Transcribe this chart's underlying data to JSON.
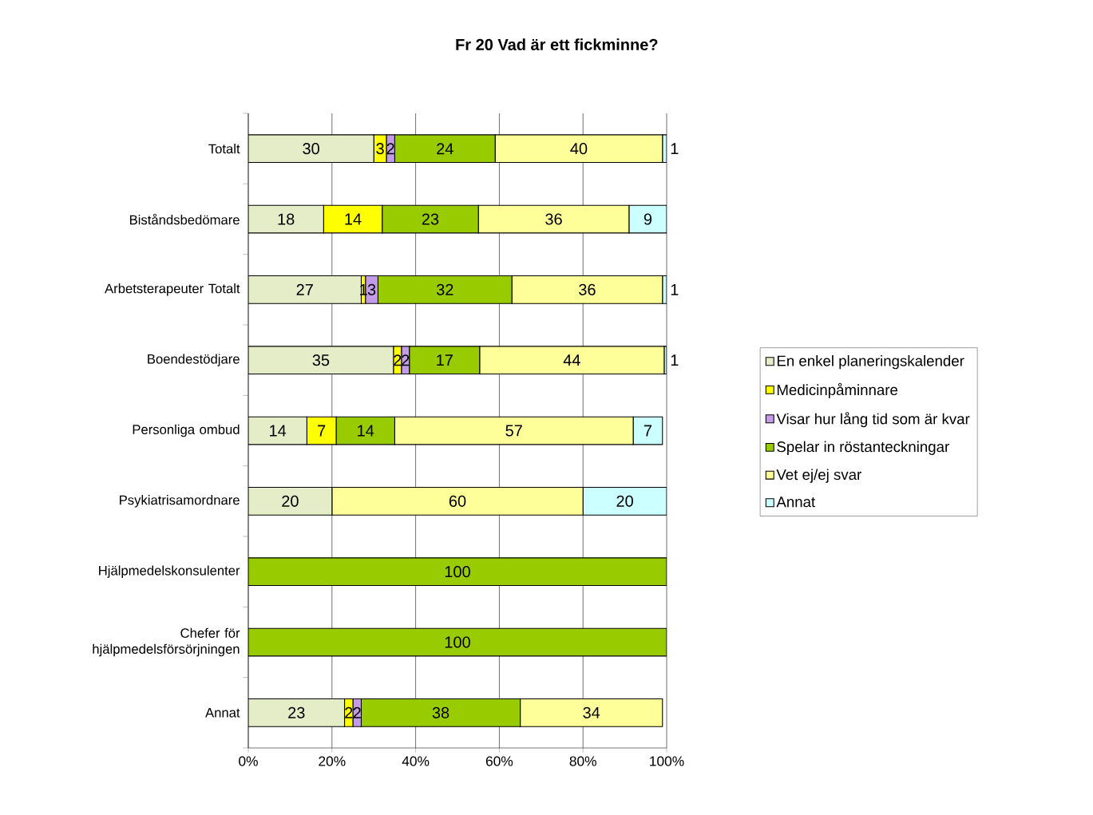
{
  "chart_data": {
    "type": "bar",
    "orientation": "horizontal",
    "stacked": true,
    "title": "Fr 20 Vad är ett fickminne?",
    "categories": [
      "Totalt",
      "Biståndsbedömare",
      "Arbetsterapeuter Totalt",
      "Boendestödjare",
      "Personliga ombud",
      "Psykiatrisamordnare",
      "Hjälpmedelskonsulenter",
      "Chefer för hjälpmedelsförsörjningen",
      "Annat"
    ],
    "series": [
      {
        "name": "En enkel planeringskalender",
        "color": "#e4ecc8",
        "values": [
          30,
          18,
          27,
          34.7,
          14,
          20,
          null,
          null,
          23
        ],
        "value_labels": [
          "30",
          "18",
          "27",
          "35",
          "14",
          "20",
          null,
          null,
          "23"
        ]
      },
      {
        "name": "Medicinpåminnare",
        "color": "#ffff00",
        "values": [
          3,
          14,
          1,
          1.9,
          7,
          null,
          null,
          null,
          2
        ],
        "value_labels": [
          "3",
          "14",
          "1",
          "2",
          "7",
          null,
          null,
          null,
          "2"
        ]
      },
      {
        "name": "Visar hur lång tid som är kvar",
        "color": "#c39be8",
        "values": [
          2,
          null,
          3,
          1.9,
          null,
          null,
          null,
          null,
          2
        ],
        "value_labels": [
          "2",
          null,
          "3",
          "2",
          null,
          null,
          null,
          null,
          "2"
        ]
      },
      {
        "name": "Spelar in röstanteckningar",
        "color": "#99cc00",
        "values": [
          24,
          23,
          32,
          16.8,
          14,
          null,
          100,
          100,
          38
        ],
        "value_labels": [
          "24",
          "23",
          "32",
          "17",
          "14",
          null,
          "100",
          "100",
          "38"
        ]
      },
      {
        "name": "Vet ej/ej svar",
        "color": "#ffff99",
        "values": [
          40,
          36,
          36,
          44.1,
          57,
          60,
          null,
          null,
          34
        ],
        "value_labels": [
          "40",
          "36",
          "36",
          "44",
          "57",
          "60",
          null,
          null,
          "34"
        ]
      },
      {
        "name": "Annat",
        "color": "#ccffff",
        "values": [
          1,
          9,
          1,
          0.6,
          7,
          20,
          null,
          null,
          null
        ],
        "value_labels": [
          "1",
          "9",
          "1",
          "1",
          "7",
          "20",
          null,
          null,
          null
        ]
      }
    ],
    "xlim": [
      0,
      100
    ],
    "xticks": [
      {
        "value": 0,
        "label": "0%"
      },
      {
        "value": 20,
        "label": "20%"
      },
      {
        "value": 40,
        "label": "40%"
      },
      {
        "value": 60,
        "label": "60%"
      },
      {
        "value": 80,
        "label": "80%"
      },
      {
        "value": 100,
        "label": "100%"
      }
    ],
    "grid": "x",
    "legend": "right"
  }
}
